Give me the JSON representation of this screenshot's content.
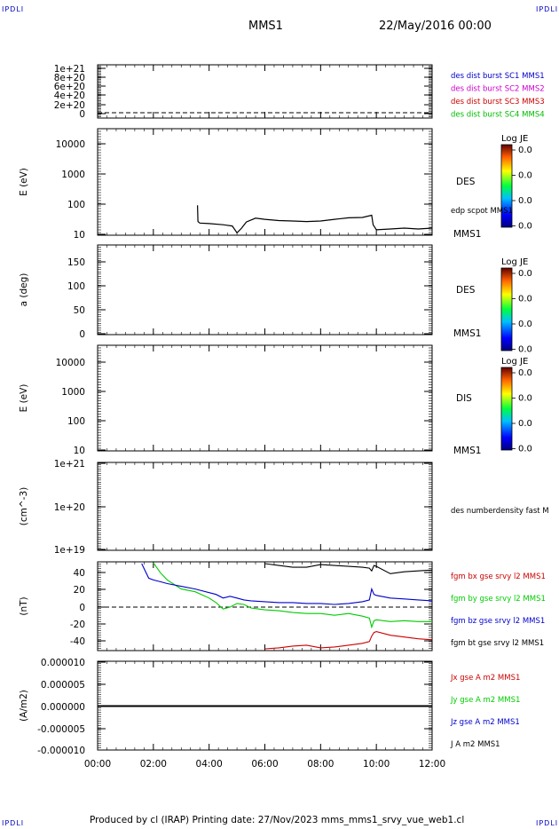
{
  "corners": {
    "top_left": "IPDLI",
    "top_right": "IPDLI",
    "bottom_left": "IPDLI",
    "bottom_right": "IPDLI"
  },
  "header": {
    "spacecraft": "MMS1",
    "datetime": "22/May/2016 00:00"
  },
  "footer": {
    "text": "Produced by cl (IRAP)   Printing date: 27/Nov/2023   mms_mms1_srvy_vue_web1.cl"
  },
  "colorbar_title": "Log JE",
  "colorbar_ticks": [
    "0.0",
    "0.0",
    "0.0",
    "0.0"
  ],
  "time_ticks": [
    "00:00",
    "02:00",
    "04:00",
    "06:00",
    "08:00",
    "10:00",
    "12:00"
  ],
  "chart_data": [
    {
      "type": "line",
      "panel": "des dist burst",
      "ylabel": "",
      "yticks": [
        "1e+21",
        "8e+20",
        "6e+20",
        "4e+20",
        "2e+20",
        "0"
      ],
      "reference_line": 0,
      "legend": [
        {
          "label": "des dist burst SC1 MMS1",
          "color": "#0000cc"
        },
        {
          "label": "des dist burst SC2 MMS2",
          "color": "#cc00cc"
        },
        {
          "label": "des dist burst SC3 MMS3",
          "color": "#cc0000"
        },
        {
          "label": "des dist burst SC4 MMS4",
          "color": "#00bb00"
        }
      ]
    },
    {
      "type": "heatmap",
      "panel": "DES energy spectrogram",
      "ylabel": "E (eV)",
      "yscale": "log",
      "yticks": [
        "10000",
        "1000",
        "100",
        "10"
      ],
      "side_label": "DES",
      "bottom_label": "MMS1",
      "overlay": {
        "label": "edp scpot MMS1",
        "color": "#000000",
        "x": [
          "03:35",
          "03:36",
          "03:40",
          "04:00",
          "04:30",
          "04:50",
          "05:00",
          "05:10",
          "05:20",
          "05:40",
          "06:00",
          "06:30",
          "07:00",
          "07:30",
          "08:00",
          "08:30",
          "09:00",
          "09:30",
          "09:50",
          "09:53",
          "10:00",
          "10:30",
          "11:00",
          "11:30",
          "12:00"
        ],
        "y": [
          95,
          28,
          25,
          24,
          22,
          20,
          12,
          17,
          27,
          36,
          33,
          30,
          29,
          28,
          29,
          33,
          37,
          38,
          45,
          22,
          15,
          16,
          17,
          16,
          17
        ]
      }
    },
    {
      "type": "heatmap",
      "panel": "DES pitch angle",
      "ylabel": "a (deg)",
      "yticks": [
        "150",
        "100",
        "50",
        "0"
      ],
      "side_label": "DES",
      "bottom_label": "MMS1"
    },
    {
      "type": "heatmap",
      "panel": "DIS energy spectrogram",
      "ylabel": "E (eV)",
      "yscale": "log",
      "yticks": [
        "10000",
        "1000",
        "100",
        "10"
      ],
      "side_label": "DIS",
      "bottom_label": "MMS1"
    },
    {
      "type": "line",
      "panel": "number density",
      "ylabel": "(cm^-3)",
      "yscale": "log",
      "yticks": [
        "1e+21",
        "1e+20",
        "1e+19"
      ],
      "legend": [
        {
          "label": "des numberdensity fast M",
          "color": "#000000"
        }
      ]
    },
    {
      "type": "line",
      "panel": "magnetic field",
      "ylabel": "(nT)",
      "yticks": [
        "40",
        "20",
        "0",
        "-20",
        "-40"
      ],
      "ylim": [
        -48,
        50
      ],
      "reference_line": 0,
      "x": [
        "01:35",
        "01:50",
        "02:00",
        "02:15",
        "02:30",
        "03:00",
        "03:30",
        "04:00",
        "04:15",
        "04:30",
        "04:45",
        "05:00",
        "05:15",
        "05:30",
        "06:00",
        "06:30",
        "07:00",
        "07:30",
        "08:00",
        "08:30",
        "09:00",
        "09:30",
        "09:45",
        "09:50",
        "09:55",
        "10:00",
        "10:30",
        "11:00",
        "11:30",
        "12:00"
      ],
      "series": [
        {
          "name": "fgm bx gse srvy l2 MMS1",
          "color": "#cc0000",
          "values": [
            null,
            null,
            null,
            null,
            null,
            null,
            null,
            null,
            null,
            null,
            null,
            null,
            null,
            null,
            -46,
            -45,
            -43,
            -42,
            -45,
            -44,
            -42,
            -40,
            -38,
            -32,
            -28,
            -27,
            -31,
            -33,
            -35,
            -36
          ]
        },
        {
          "name": "fgm by gse srvy l2 MMS1",
          "color": "#00cc00",
          "values": [
            null,
            null,
            49,
            38,
            30,
            20,
            17,
            10,
            5,
            -2,
            0,
            4,
            3,
            -1,
            -3,
            -4,
            -6,
            -7,
            -7,
            -9,
            -7,
            -10,
            -12,
            -22,
            -15,
            -14,
            -16,
            -15,
            -16,
            -16
          ]
        },
        {
          "name": "fgm bz gse srvy l2 MMS1",
          "color": "#0000cc",
          "values": [
            48,
            32,
            30,
            28,
            26,
            23,
            20,
            16,
            14,
            10,
            12,
            10,
            8,
            7,
            6,
            5,
            5,
            4,
            4,
            3,
            4,
            6,
            8,
            20,
            14,
            13,
            10,
            9,
            8,
            7
          ]
        },
        {
          "name": "fgm bt gse srvy l2 MMS1",
          "color": "#000000",
          "values": [
            null,
            null,
            null,
            null,
            null,
            null,
            null,
            null,
            null,
            null,
            null,
            null,
            null,
            null,
            48,
            46,
            44,
            44,
            47,
            46,
            45,
            44,
            43,
            40,
            46,
            45,
            37,
            39,
            40,
            41
          ]
        }
      ]
    },
    {
      "type": "line",
      "panel": "current density",
      "ylabel": "(A/m2)",
      "yticks": [
        "0.000010",
        "0.000005",
        "0.000000",
        "-0.000005",
        "-0.000010"
      ],
      "ylim": [
        -1e-05,
        1e-05
      ],
      "reference_line": 0,
      "x": [
        "00:00",
        "02:00",
        "04:00",
        "06:00",
        "08:00",
        "10:00",
        "12:00"
      ],
      "series": [
        {
          "name": "Jx gse A m2 MMS1",
          "color": "#cc0000",
          "values": [
            0,
            0,
            0,
            0,
            0,
            0,
            0
          ]
        },
        {
          "name": "Jy gse A m2 MMS1",
          "color": "#00cc00",
          "values": [
            0,
            0,
            0,
            0,
            0,
            0,
            0
          ]
        },
        {
          "name": "Jz gse A m2 MMS1",
          "color": "#0000cc",
          "values": [
            0,
            0,
            0,
            0,
            0,
            0,
            0
          ]
        },
        {
          "name": "J A m2 MMS1",
          "color": "#000000",
          "values": [
            0,
            0,
            0,
            0,
            0,
            0,
            0
          ]
        }
      ]
    }
  ]
}
